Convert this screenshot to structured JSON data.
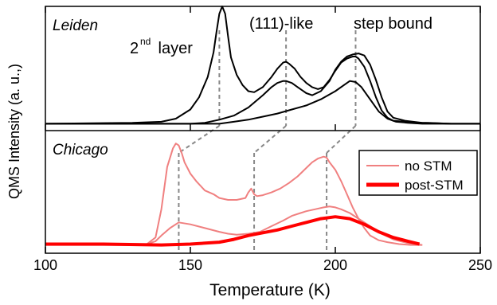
{
  "chart_data": {
    "type": "line",
    "xlabel": "Temperature (K)",
    "ylabel": "QMS Intensity (a. u.,)",
    "xlim": [
      100,
      250
    ],
    "x_ticks": [
      "100",
      "150",
      "200",
      "250"
    ],
    "tick_values": [
      100,
      150,
      200,
      250
    ],
    "grid": false,
    "legend_position": "right",
    "panels": [
      {
        "name": "Leiden",
        "peak_labels": [
          {
            "text": "2",
            "sup": "nd",
            "rest": " layer"
          },
          {
            "text": "(111)-like"
          },
          {
            "text": "step bound"
          }
        ],
        "peak_positions": [
          160,
          183,
          207
        ],
        "color": "#000000",
        "series": [
          {
            "x": [
              100,
              130,
              140,
              145,
              150,
              153,
              156,
              158,
              159,
              160,
              161,
              162,
              163,
              164,
              166,
              168,
              170,
              172,
              175,
              178,
              180,
              182,
              183,
              184,
              186,
              188,
              190,
              192,
              194,
              196,
              198,
              200,
              202,
              204,
              206,
              207,
              208,
              210,
              212,
              214,
              216,
              218,
              220,
              224,
              228,
              232,
              240,
              250
            ],
            "y": [
              0.02,
              0.03,
              0.04,
              0.07,
              0.16,
              0.28,
              0.48,
              0.72,
              0.92,
              1.1,
              1.25,
              1.1,
              0.88,
              0.67,
              0.5,
              0.4,
              0.34,
              0.33,
              0.38,
              0.48,
              0.56,
              0.62,
              0.63,
              0.61,
              0.56,
              0.48,
              0.42,
              0.38,
              0.36,
              0.38,
              0.45,
              0.54,
              0.62,
              0.66,
              0.68,
              0.68,
              0.66,
              0.58,
              0.44,
              0.28,
              0.15,
              0.08,
              0.05,
              0.04,
              0.03,
              0.03,
              0.02,
              0.02
            ]
          },
          {
            "x": [
              100,
              150,
              155,
              160,
              165,
              170,
              175,
              178,
              180,
              182,
              183,
              185,
              187,
              190,
              192,
              195,
              198,
              200,
              202,
              204,
              206,
              208,
              210,
              212,
              214,
              216,
              218,
              220,
              224,
              230,
              240,
              250
            ],
            "y": [
              0.02,
              0.02,
              0.03,
              0.06,
              0.1,
              0.18,
              0.3,
              0.38,
              0.42,
              0.44,
              0.44,
              0.42,
              0.38,
              0.32,
              0.3,
              0.34,
              0.44,
              0.55,
              0.63,
              0.68,
              0.7,
              0.71,
              0.69,
              0.6,
              0.45,
              0.28,
              0.14,
              0.08,
              0.05,
              0.03,
              0.02,
              0.02
            ]
          },
          {
            "x": [
              100,
              160,
              165,
              170,
              175,
              180,
              185,
              190,
              195,
              200,
              203,
              205,
              207,
              209,
              211,
              213,
              215,
              218,
              221,
              225,
              230,
              240,
              250
            ],
            "y": [
              0.02,
              0.02,
              0.04,
              0.06,
              0.09,
              0.12,
              0.16,
              0.2,
              0.26,
              0.34,
              0.4,
              0.44,
              0.43,
              0.38,
              0.3,
              0.22,
              0.14,
              0.07,
              0.04,
              0.03,
              0.02,
              0.02,
              0.02
            ]
          }
        ]
      },
      {
        "name": "Chicago",
        "peak_positions": [
          146,
          172,
          197
        ],
        "legend": [
          {
            "label": "no STM",
            "color": "#f08080"
          },
          {
            "label": "post-STM",
            "color": "#ff0000"
          }
        ],
        "series": [
          {
            "name": "no STM",
            "color": "#f08080",
            "width": 2,
            "x": [
              100,
              130,
              135,
              138,
              140,
              142,
              144,
              145,
              146,
              147,
              148,
              150,
              152,
              155,
              158,
              160,
              163,
              166,
              169,
              170,
              171,
              172,
              173,
              175,
              178,
              181,
              184,
              187,
              190,
              192,
              194,
              196,
              197,
              198,
              200,
              202,
              204,
              206,
              208,
              210,
              212,
              215,
              218,
              222,
              226,
              230
            ],
            "y": [
              0.02,
              0.02,
              0.03,
              0.1,
              0.4,
              0.85,
              1.05,
              1.1,
              1.08,
              1.0,
              0.9,
              0.78,
              0.7,
              0.6,
              0.56,
              0.52,
              0.5,
              0.5,
              0.52,
              0.58,
              0.62,
              0.56,
              0.54,
              0.55,
              0.58,
              0.62,
              0.68,
              0.75,
              0.84,
              0.9,
              0.94,
              0.96,
              0.95,
              0.9,
              0.82,
              0.7,
              0.56,
              0.42,
              0.3,
              0.2,
              0.12,
              0.07,
              0.05,
              0.03,
              0.02,
              0.02
            ]
          },
          {
            "name": "no STM",
            "color": "#f08080",
            "width": 2,
            "x": [
              100,
              130,
              135,
              138,
              140,
              143,
              146,
              150,
              155,
              160,
              163,
              166,
              170,
              174,
              178,
              182,
              185,
              188,
              190,
              193,
              196,
              198,
              200,
              202,
              205,
              208,
              210,
              213,
              216,
              220,
              225,
              230
            ],
            "y": [
              0.02,
              0.02,
              0.03,
              0.06,
              0.12,
              0.2,
              0.26,
              0.24,
              0.2,
              0.16,
              0.14,
              0.13,
              0.14,
              0.16,
              0.22,
              0.28,
              0.33,
              0.36,
              0.38,
              0.4,
              0.42,
              0.43,
              0.42,
              0.4,
              0.36,
              0.3,
              0.26,
              0.2,
              0.14,
              0.08,
              0.04,
              0.02
            ]
          },
          {
            "name": "post-STM",
            "color": "#ff0000",
            "width": 4,
            "x": [
              100,
              120,
              140,
              150,
              160,
              165,
              170,
              175,
              180,
              185,
              190,
              195,
              200,
              205,
              210,
              215,
              220,
              225,
              229
            ],
            "y": [
              0.03,
              0.03,
              0.02,
              0.03,
              0.05,
              0.08,
              0.12,
              0.15,
              0.18,
              0.22,
              0.26,
              0.3,
              0.32,
              0.3,
              0.24,
              0.16,
              0.1,
              0.06,
              0.03
            ]
          }
        ]
      }
    ]
  }
}
